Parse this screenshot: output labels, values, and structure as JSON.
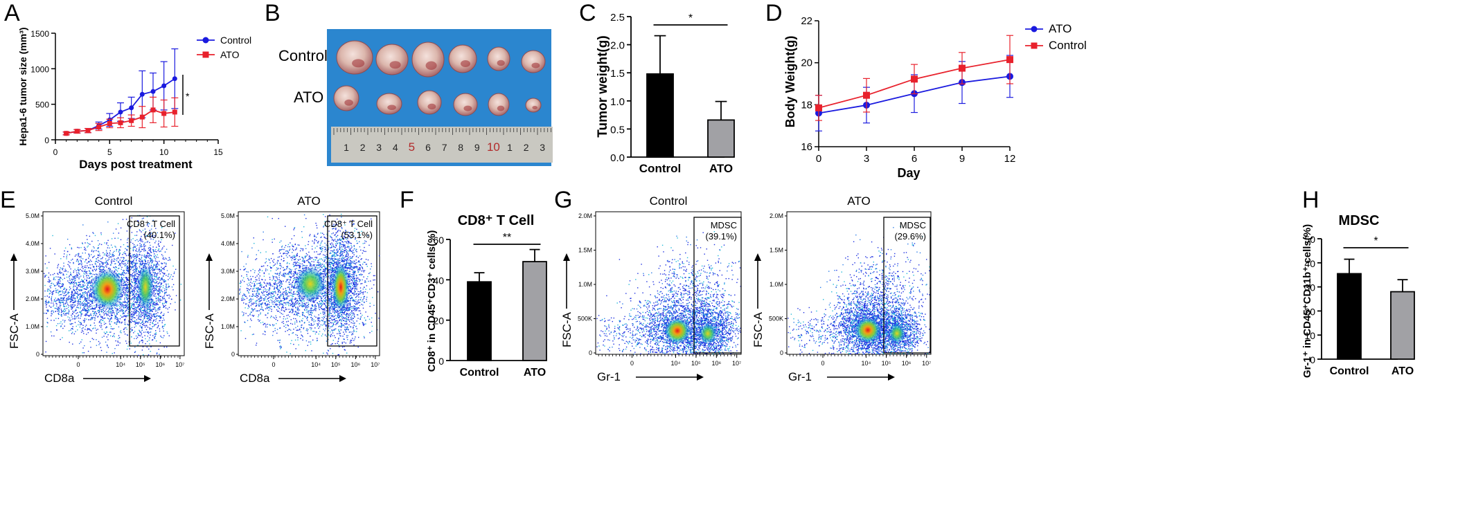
{
  "panel_labels": [
    "A",
    "B",
    "C",
    "D",
    "E",
    "F",
    "G",
    "H"
  ],
  "chart_data": [
    {
      "panel": "A",
      "type": "line",
      "xlabel": "Days post treatment",
      "ylabel": "Hepa1-6 tumor size (mm³)",
      "xlim": [
        0,
        15
      ],
      "ylim": [
        0,
        1500
      ],
      "xticks": [
        "0",
        "5",
        "10",
        "15"
      ],
      "yticks": [
        "0",
        "500",
        "1000",
        "1500"
      ],
      "legend": "top-right",
      "significance": "*",
      "series": [
        {
          "name": "Control",
          "color": "#1a1adf",
          "marker": "circle",
          "x": [
            1,
            2,
            3,
            4,
            5,
            6,
            7,
            8,
            9,
            10,
            11
          ],
          "y": [
            90,
            120,
            130,
            200,
            280,
            390,
            450,
            640,
            680,
            760,
            860
          ],
          "err": [
            20,
            25,
            30,
            50,
            90,
            130,
            150,
            330,
            260,
            340,
            420
          ]
        },
        {
          "name": "ATO",
          "color": "#e8212c",
          "marker": "square",
          "x": [
            1,
            2,
            3,
            4,
            5,
            6,
            7,
            8,
            9,
            10,
            11
          ],
          "y": [
            90,
            120,
            130,
            180,
            230,
            240,
            270,
            320,
            420,
            370,
            390
          ],
          "err": [
            20,
            25,
            30,
            50,
            60,
            70,
            80,
            150,
            180,
            190,
            200
          ]
        }
      ]
    },
    {
      "panel": "C",
      "type": "bar",
      "ylabel": "Tumor weight(g)",
      "ylim": [
        0,
        2.5
      ],
      "yticks": [
        "0.0",
        "0.5",
        "1.0",
        "1.5",
        "2.0",
        "2.5"
      ],
      "categories": [
        "Control",
        "ATO"
      ],
      "values": [
        1.48,
        0.66
      ],
      "err": [
        0.68,
        0.33
      ],
      "colors": [
        "#000000",
        "#a1a1a5"
      ],
      "significance": "*"
    },
    {
      "panel": "D",
      "type": "line",
      "xlabel": "Day",
      "ylabel": "Body Weight(g)",
      "xlim": [
        0,
        12
      ],
      "ylim": [
        16,
        22
      ],
      "xticks": [
        "0",
        "3",
        "6",
        "9",
        "12"
      ],
      "yticks": [
        "16",
        "18",
        "20",
        "22"
      ],
      "legend": "top-right",
      "series": [
        {
          "name": "ATO",
          "color": "#1a1adf",
          "marker": "circle",
          "x": [
            0,
            3,
            6,
            9,
            12
          ],
          "y": [
            17.6,
            17.98,
            18.53,
            19.06,
            19.35
          ],
          "err": [
            0.85,
            0.85,
            0.9,
            1.0,
            1.0
          ]
        },
        {
          "name": "Control",
          "color": "#e8212c",
          "marker": "square",
          "x": [
            0,
            3,
            6,
            9,
            12
          ],
          "y": [
            17.85,
            18.45,
            19.22,
            19.74,
            20.15
          ],
          "err": [
            0.6,
            0.8,
            0.7,
            0.75,
            1.15
          ]
        }
      ]
    },
    {
      "panel": "F",
      "type": "bar",
      "title": "CD8⁺ T Cell",
      "ylabel": "CD8⁺ in CD45⁺CD3⁺ cells(%)",
      "ylim": [
        0,
        60
      ],
      "yticks": [
        "0",
        "20",
        "40",
        "60"
      ],
      "categories": [
        "Control",
        "ATO"
      ],
      "values": [
        39,
        49
      ],
      "err": [
        4.5,
        6
      ],
      "colors": [
        "#000000",
        "#a1a1a5"
      ],
      "significance": "**"
    },
    {
      "panel": "H",
      "type": "bar",
      "title": "MDSC",
      "ylabel": "Gr-1⁺ in CD45⁺CD11b⁺ cells(%)",
      "ylim": [
        0,
        50
      ],
      "yticks": [
        "0",
        "10",
        "20",
        "30",
        "40",
        "50"
      ],
      "categories": [
        "Control",
        "ATO"
      ],
      "values": [
        35.5,
        28
      ],
      "err": [
        6,
        5
      ],
      "colors": [
        "#000000",
        "#a1a1a5"
      ],
      "significance": "*"
    }
  ],
  "photo": {
    "row_labels": [
      "Control",
      "ATO"
    ],
    "ruler_numbers": [
      "1",
      "2",
      "3",
      "4",
      "5",
      "6",
      "7",
      "8",
      "9",
      "10",
      "1",
      "2",
      "3"
    ],
    "ruler_red": [
      "5",
      "10"
    ]
  },
  "flow": {
    "E": {
      "plots": [
        {
          "title": "Control",
          "gate_name": "CD8⁺ T Cell",
          "gate_pct": "(40.1%)"
        },
        {
          "title": "ATO",
          "gate_name": "CD8⁺ T Cell",
          "gate_pct": "(53.1%)"
        }
      ],
      "xlabel": "CD8a",
      "ylabel": "FSC-A",
      "yticks": [
        "0",
        "1.0M",
        "2.0M",
        "3.0M",
        "4.0M",
        "5.0M"
      ],
      "xticks": [
        "0",
        "10⁴",
        "10⁵",
        "10⁶",
        "10⁷"
      ]
    },
    "G": {
      "plots": [
        {
          "title": "Control",
          "gate_name": "MDSC",
          "gate_pct": "(39.1%)"
        },
        {
          "title": "ATO",
          "gate_name": "MDSC",
          "gate_pct": "(29.6%)"
        }
      ],
      "xlabel": "Gr-1",
      "ylabel": "FSC-A",
      "yticks": [
        "0",
        "500K",
        "1.0M",
        "1.5M",
        "2.0M"
      ],
      "xticks": [
        "0",
        "10⁴",
        "10⁵",
        "10⁶",
        "10⁷"
      ]
    }
  }
}
